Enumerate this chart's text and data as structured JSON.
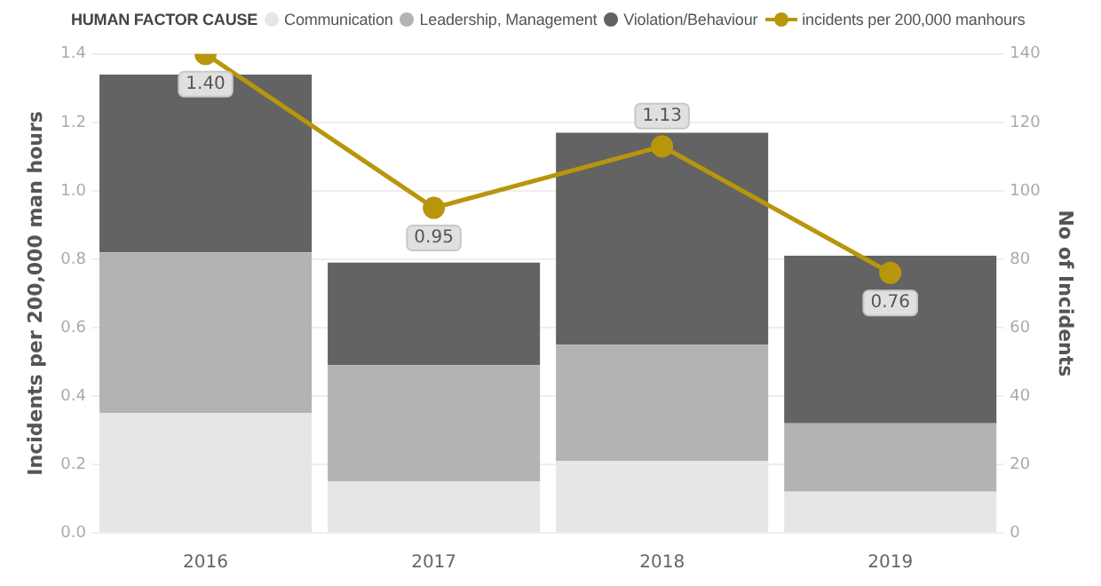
{
  "chart_data": {
    "type": "bar",
    "stacked": true,
    "legend_title": "HUMAN FACTOR CAUSE",
    "legend": "top",
    "grid": "y2",
    "ylabel": "Incidents per 200,000 man hours",
    "y2label": "No of Incidents",
    "categories": [
      "2016",
      "2017",
      "2018",
      "2019"
    ],
    "ylim": [
      0,
      1.4
    ],
    "yticks": [
      {
        "value": 0,
        "label": "0.0"
      },
      0.2,
      0.4,
      0.6,
      0.8,
      {
        "value": 1,
        "label": "1.0"
      },
      1.2,
      1.4
    ],
    "y2lim": [
      0,
      140
    ],
    "y2ticks": [
      0,
      20,
      40,
      60,
      80,
      100,
      120,
      140
    ],
    "series": [
      {
        "name": "Communication",
        "color": "#e6e6e6",
        "axis": "y2",
        "values": [
          35,
          15,
          21,
          12
        ]
      },
      {
        "name": "Leadership, Management",
        "color": "#b3b3b3",
        "axis": "y2",
        "values": [
          47,
          34,
          34,
          20
        ]
      },
      {
        "name": "Violation/Behaviour",
        "color": "#636363",
        "axis": "y2",
        "values": [
          52,
          30,
          62,
          49
        ]
      },
      {
        "name": "incidents per 200,000 manhours",
        "type": "line",
        "color": "#b8960c",
        "marker": "circle",
        "values": [
          1.4,
          0.95,
          1.13,
          0.76
        ],
        "value_labels": [
          "1.40",
          "0.95",
          "1.13",
          "0.76"
        ]
      }
    ]
  }
}
